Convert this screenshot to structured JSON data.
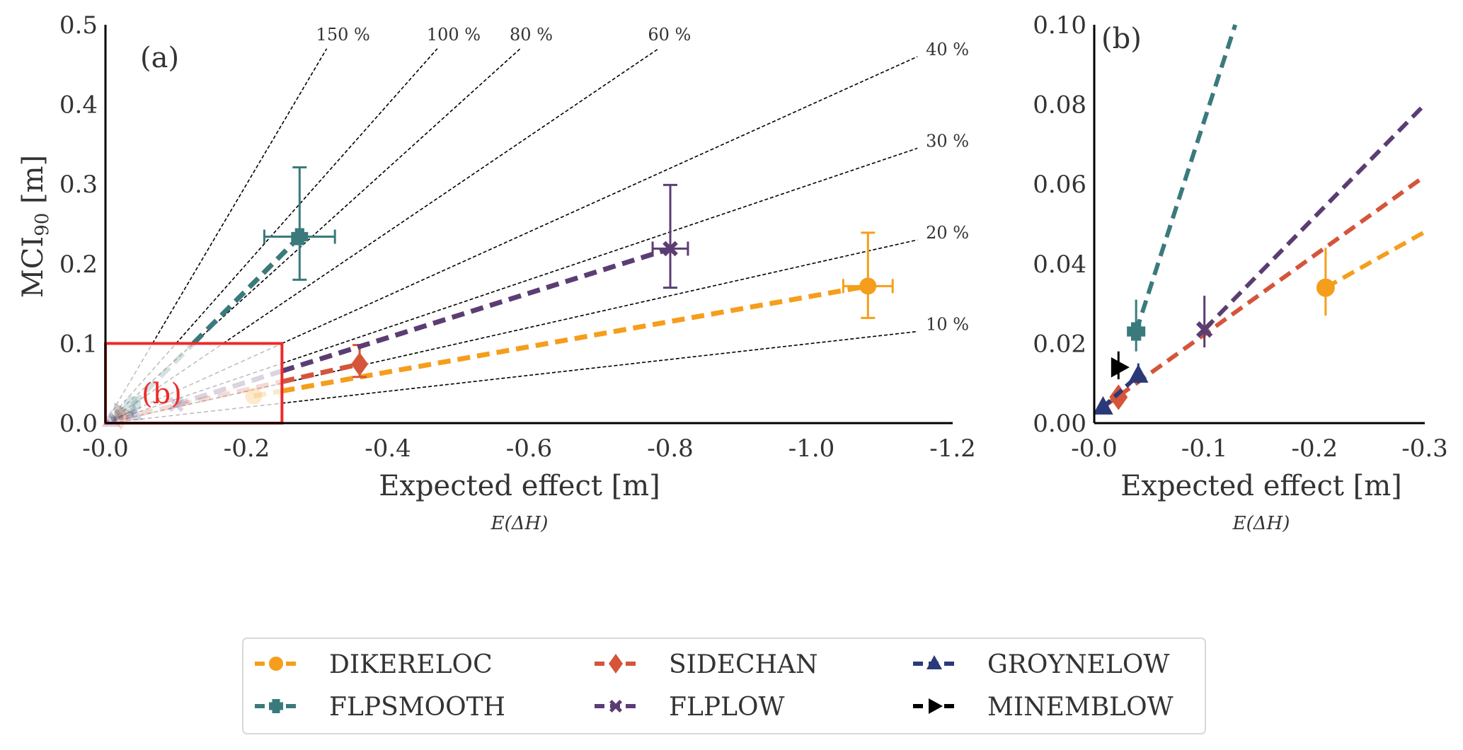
{
  "chart_data": [
    {
      "id": "a",
      "type": "scatter",
      "panel_label": "(a)",
      "xlabel": "Expected effect [m]",
      "xsublabel": "E(ΔH)",
      "ylabel": "MCI",
      "ylabel_sub": "90",
      "ylabel_unit": " [m]",
      "xlim": [
        0.0,
        -1.2
      ],
      "ylim": [
        0.0,
        0.5
      ],
      "xticks": [
        0.0,
        -0.2,
        -0.4,
        -0.6,
        -0.8,
        -1.0,
        -1.2
      ],
      "xtick_labels": [
        "-0.0",
        "-0.2",
        "-0.4",
        "-0.6",
        "-0.8",
        "-1.0",
        "-1.2"
      ],
      "yticks": [
        0.0,
        0.1,
        0.2,
        0.3,
        0.4,
        0.5
      ],
      "ytick_labels": [
        "0.0",
        "0.1",
        "0.2",
        "0.3",
        "0.4",
        "0.5"
      ],
      "grid": false,
      "reference_lines": [
        {
          "ratio": 1.5,
          "label": "150 %"
        },
        {
          "ratio": 1.0,
          "label": "100 %"
        },
        {
          "ratio": 0.8,
          "label": "80 %"
        },
        {
          "ratio": 0.6,
          "label": "60 %"
        },
        {
          "ratio": 0.4,
          "label": "40 %"
        },
        {
          "ratio": 0.3,
          "label": "30 %"
        },
        {
          "ratio": 0.2,
          "label": "20 %"
        },
        {
          "ratio": 0.1,
          "label": "10 %"
        }
      ],
      "inset_box": {
        "label": "(b)",
        "xrange": [
          0.0,
          -0.25
        ],
        "yrange": [
          0.0,
          0.1
        ]
      },
      "series": [
        {
          "name": "DIKERELOC",
          "color": "#F59E1B",
          "marker": "circle",
          "points": [
            {
              "x": -0.21,
              "y": 0.034
            },
            {
              "x": -1.08,
              "y": 0.172,
              "xerr": 0.035,
              "yerr_low": 0.132,
              "yerr_high": 0.239
            }
          ]
        },
        {
          "name": "FLPSMOOTH",
          "color": "#3A7A7C",
          "marker": "plus",
          "points": [
            {
              "x": -0.038,
              "y": 0.023
            },
            {
              "x": -0.275,
              "y": 0.234,
              "xerr": 0.05,
              "yerr_low": 0.18,
              "yerr_high": 0.321
            }
          ]
        },
        {
          "name": "SIDECHAN",
          "color": "#D4553A",
          "marker": "diamond",
          "points": [
            {
              "x": -0.022,
              "y": 0.0065
            },
            {
              "x": -0.36,
              "y": 0.074,
              "yerr_low": 0.058,
              "yerr_high": 0.098
            }
          ]
        },
        {
          "name": "FLPLOW",
          "color": "#5B3D74",
          "marker": "x",
          "points": [
            {
              "x": -0.1,
              "y": 0.0235
            },
            {
              "x": -0.8,
              "y": 0.219,
              "xerr": 0.025,
              "yerr_low": 0.17,
              "yerr_high": 0.299
            }
          ]
        },
        {
          "name": "GROYNELOW",
          "color": "#2A3A78",
          "marker": "triangle-up",
          "points": [
            {
              "x": -0.008,
              "y": 0.004
            },
            {
              "x": -0.04,
              "y": 0.012
            }
          ]
        },
        {
          "name": "MINEMBLOW",
          "color": "#000000",
          "marker": "triangle-right",
          "points": [
            {
              "x": -0.022,
              "y": 0.014
            }
          ]
        }
      ]
    },
    {
      "id": "b",
      "type": "scatter",
      "panel_label": "(b)",
      "xlabel": "Expected effect [m]",
      "xsublabel": "E(ΔH)",
      "xlim": [
        0.0,
        -0.3
      ],
      "ylim": [
        0.0,
        0.1
      ],
      "xticks": [
        0.0,
        -0.1,
        -0.2,
        -0.3
      ],
      "xtick_labels": [
        "-0.0",
        "-0.1",
        "-0.2",
        "-0.3"
      ],
      "yticks": [
        0.0,
        0.02,
        0.04,
        0.06,
        0.08,
        0.1
      ],
      "ytick_labels": [
        "0.00",
        "0.02",
        "0.04",
        "0.06",
        "0.08",
        "0.10"
      ],
      "grid": false,
      "series": [
        {
          "name": "DIKERELOC",
          "color": "#F59E1B",
          "marker": "circle",
          "points": [
            {
              "x": -0.21,
              "y": 0.034,
              "yerr_low": 0.027,
              "yerr_high": 0.044
            }
          ],
          "line_to": {
            "x": -0.3,
            "y": 0.048
          }
        },
        {
          "name": "FLPSMOOTH",
          "color": "#3A7A7C",
          "marker": "plus",
          "points": [
            {
              "x": -0.038,
              "y": 0.023,
              "yerr_low": 0.018,
              "yerr_high": 0.031
            }
          ],
          "line_to": {
            "x": -0.128,
            "y": 0.1
          }
        },
        {
          "name": "SIDECHAN",
          "color": "#D4553A",
          "marker": "diamond",
          "points": [
            {
              "x": -0.022,
              "y": 0.0065
            }
          ],
          "line_from": {
            "x": -0.008,
            "y": 0.004
          },
          "line_to": {
            "x": -0.3,
            "y": 0.062
          }
        },
        {
          "name": "FLPLOW",
          "color": "#5B3D74",
          "marker": "x",
          "points": [
            {
              "x": -0.1,
              "y": 0.0235,
              "yerr_low": 0.019,
              "yerr_high": 0.032
            }
          ],
          "line_to": {
            "x": -0.3,
            "y": 0.08
          }
        },
        {
          "name": "GROYNELOW",
          "color": "#2A3A78",
          "marker": "triangle-up",
          "points": [
            {
              "x": -0.008,
              "y": 0.004
            },
            {
              "x": -0.04,
              "y": 0.012,
              "yerr_low": 0.01,
              "yerr_high": 0.015
            }
          ]
        },
        {
          "name": "MINEMBLOW",
          "color": "#000000",
          "marker": "triangle-right",
          "points": [
            {
              "x": -0.022,
              "y": 0.014,
              "yerr_low": 0.011,
              "yerr_high": 0.018
            }
          ]
        }
      ]
    }
  ],
  "legend": {
    "placement": "bottom-center",
    "columns": 3,
    "entries": [
      {
        "label": "DIKERELOC",
        "color": "#F59E1B",
        "marker": "circle"
      },
      {
        "label": "SIDECHAN",
        "color": "#D4553A",
        "marker": "diamond"
      },
      {
        "label": "GROYNELOW",
        "color": "#2A3A78",
        "marker": "triangle-up"
      },
      {
        "label": "FLPSMOOTH",
        "color": "#3A7A7C",
        "marker": "plus"
      },
      {
        "label": "FLPLOW",
        "color": "#5B3D74",
        "marker": "x"
      },
      {
        "label": "MINEMBLOW",
        "color": "#000000",
        "marker": "triangle-right"
      }
    ]
  },
  "colors": {
    "inset_box": "#EE2A2A",
    "axis": "#000000",
    "reference": "#000000"
  }
}
